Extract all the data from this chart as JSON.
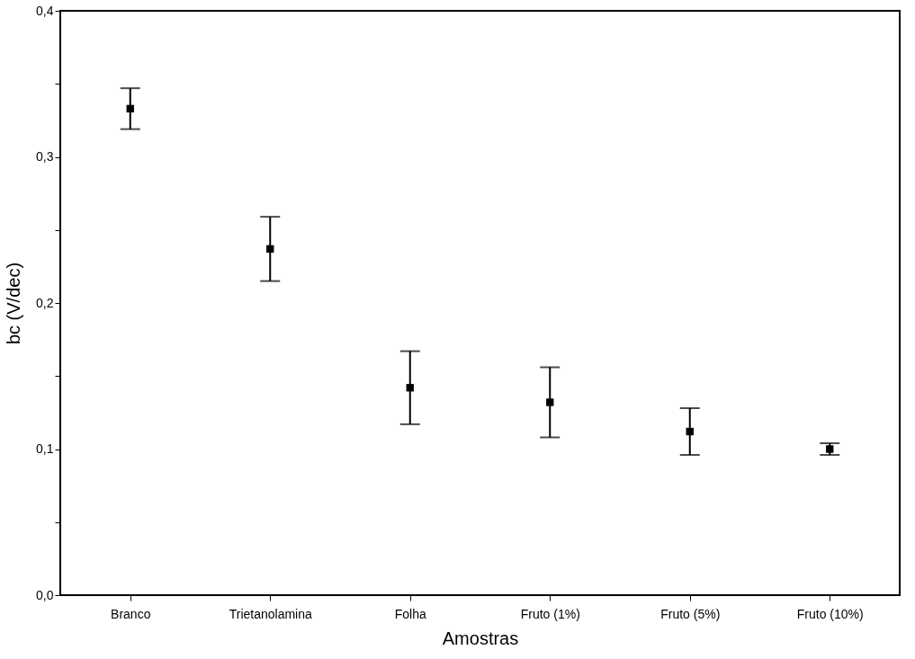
{
  "chart_data": {
    "type": "scatter",
    "xlabel": "Amostras",
    "ylabel": "bc (V/dec)",
    "categories": [
      "Branco",
      "Trietanolamina",
      "Folha",
      "Fruto (1%)",
      "Fruto (5%)",
      "Fruto (10%)"
    ],
    "series": [
      {
        "color": "#000000",
        "values": [
          0.333,
          0.237,
          0.142,
          0.132,
          0.112,
          0.1
        ],
        "errors": [
          0.014,
          0.022,
          0.025,
          0.024,
          0.016,
          0.004
        ]
      }
    ],
    "ylim": [
      0,
      0.4
    ],
    "yticks": [
      {
        "value": 0,
        "label": "0,0"
      },
      {
        "value": 0.05,
        "label": null
      },
      {
        "value": 0.1,
        "label": "0,1"
      },
      {
        "value": 0.15,
        "label": null
      },
      {
        "value": 0.2,
        "label": "0,2"
      },
      {
        "value": 0.25,
        "label": null
      },
      {
        "value": 0.3,
        "label": "0,3"
      },
      {
        "value": 0.35,
        "label": null
      },
      {
        "value": 0.4,
        "label": "0,4"
      }
    ],
    "marker": "square",
    "grid": false
  }
}
